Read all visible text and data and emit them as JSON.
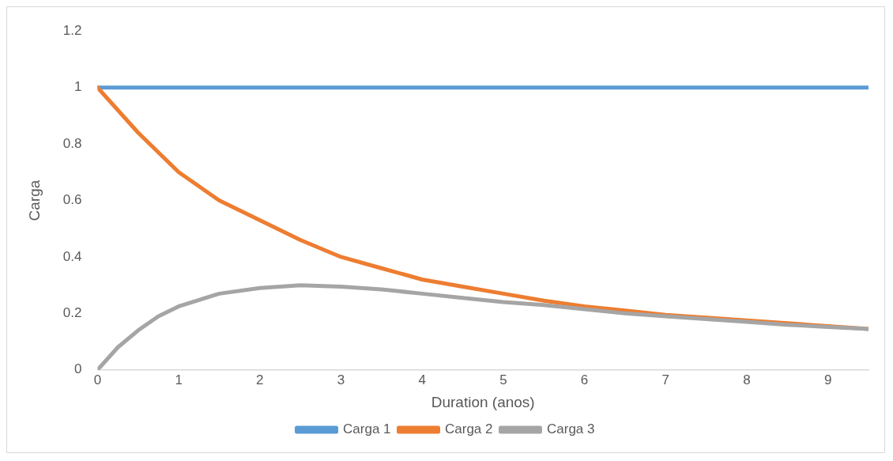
{
  "chart_data": {
    "type": "line",
    "xlabel": "Duration (anos)",
    "ylabel": "Carga",
    "xlim": [
      0,
      9.5
    ],
    "xticks": [
      0,
      1,
      2,
      3,
      4,
      5,
      6,
      7,
      8,
      9
    ],
    "ylim": [
      0,
      1.2
    ],
    "yticks": [
      0,
      0.2,
      0.4,
      0.6,
      0.8,
      1,
      1.2
    ],
    "grid": false,
    "legend": "bottom",
    "marker": "none",
    "line_style": "solid",
    "series": [
      {
        "name": "Carga 1",
        "color": "#5b9bd5",
        "x": [
          0,
          9.5
        ],
        "values": [
          1,
          1
        ]
      },
      {
        "name": "Carga 2",
        "color": "#ed7d31",
        "x": [
          0,
          0.5,
          1,
          1.5,
          2,
          2.5,
          3,
          3.5,
          4,
          4.5,
          5,
          5.5,
          6,
          6.5,
          7,
          7.5,
          8,
          8.5,
          9,
          9.5
        ],
        "values": [
          1,
          0.84,
          0.7,
          0.6,
          0.53,
          0.46,
          0.4,
          0.36,
          0.32,
          0.295,
          0.27,
          0.245,
          0.225,
          0.21,
          0.195,
          0.185,
          0.175,
          0.165,
          0.155,
          0.145
        ]
      },
      {
        "name": "Carga 3",
        "color": "#a5a5a5",
        "x": [
          0,
          0.25,
          0.5,
          0.75,
          1,
          1.5,
          2,
          2.5,
          3,
          3.5,
          4,
          4.5,
          5,
          5.5,
          6,
          6.5,
          7,
          7.5,
          8,
          8.5,
          9,
          9.5
        ],
        "values": [
          0,
          0.08,
          0.14,
          0.19,
          0.225,
          0.27,
          0.29,
          0.3,
          0.295,
          0.285,
          0.27,
          0.255,
          0.24,
          0.23,
          0.215,
          0.2,
          0.19,
          0.18,
          0.17,
          0.16,
          0.152,
          0.145
        ]
      }
    ]
  }
}
